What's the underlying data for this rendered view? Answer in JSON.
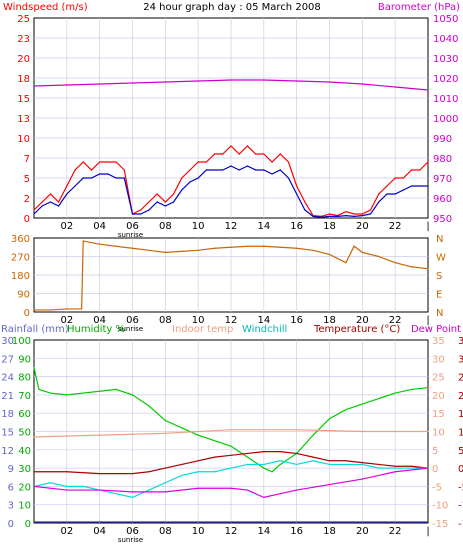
{
  "chart_data": [
    {
      "type": "line",
      "title": "24 hour graph day : 05 March 2008",
      "ylabel_left": "Windspeed (m/s)",
      "ylabel_right": "Barometer (hPa)",
      "x_ticks": [
        "02",
        "04",
        "06",
        "08",
        "10",
        "12",
        "14",
        "16",
        "18",
        "20",
        "22",
        "|"
      ],
      "annotation": "sunrise",
      "ylim_left": [
        0,
        25
      ],
      "y_ticks_left": [
        "0",
        "2",
        "5",
        "7",
        "10",
        "13",
        "15",
        "18",
        "20",
        "23",
        "25"
      ],
      "ylim_right": [
        950,
        1050
      ],
      "y_ticks_right": [
        "950",
        "960",
        "970",
        "980",
        "990",
        "1000",
        "1010",
        "1020",
        "1030",
        "1040",
        "1050"
      ],
      "grid": true,
      "series": [
        {
          "name": "Windspeed (m/s)",
          "color": "#ff0000",
          "x": [
            0.0,
            0.5,
            1.0,
            1.5,
            2.0,
            2.5,
            3.0,
            3.5,
            4.0,
            4.5,
            5.0,
            5.5,
            6.0,
            6.5,
            7.0,
            7.5,
            8.0,
            8.5,
            9.0,
            9.5,
            10.0,
            10.5,
            11.0,
            11.5,
            12.0,
            12.5,
            13.0,
            13.5,
            14.0,
            14.5,
            15.0,
            15.5,
            16.0,
            16.5,
            17.0,
            17.5,
            18.0,
            18.5,
            19.0,
            19.5,
            20.0,
            20.5,
            21.0,
            21.5,
            22.0,
            22.5,
            23.0,
            23.5,
            24.0
          ],
          "values": [
            1,
            2,
            3,
            2,
            4,
            6,
            7,
            6,
            7,
            7,
            7,
            6,
            0.5,
            1,
            2,
            3,
            2,
            3,
            5,
            6,
            7,
            7,
            8,
            8,
            9,
            8,
            9,
            8,
            8,
            7,
            8,
            7,
            4,
            2,
            0.3,
            0.2,
            0.5,
            0.3,
            0.8,
            0.5,
            0.5,
            1,
            3,
            4,
            5,
            5,
            6,
            6,
            7
          ]
        },
        {
          "name": "Windspeed avg",
          "color": "#0000cc",
          "x": [
            0.0,
            0.5,
            1.0,
            1.5,
            2.0,
            2.5,
            3.0,
            3.5,
            4.0,
            4.5,
            5.0,
            5.5,
            6.0,
            6.5,
            7.0,
            7.5,
            8.0,
            8.5,
            9.0,
            9.5,
            10.0,
            10.5,
            11.0,
            11.5,
            12.0,
            12.5,
            13.0,
            13.5,
            14.0,
            14.5,
            15.0,
            15.5,
            16.0,
            16.5,
            17.0,
            17.5,
            18.0,
            18.5,
            19.0,
            19.5,
            20.0,
            20.5,
            21.0,
            21.5,
            22.0,
            22.5,
            23.0,
            23.5,
            24.0
          ],
          "values": [
            0.5,
            1.5,
            2,
            1.5,
            3,
            4,
            5,
            5,
            5.5,
            5.5,
            5,
            5,
            0.5,
            0.5,
            1,
            2,
            1.5,
            2,
            3.5,
            4.5,
            5,
            6,
            6,
            6,
            6.5,
            6,
            6.5,
            6,
            6,
            5.5,
            6,
            5,
            3,
            1,
            0.2,
            0.1,
            0.2,
            0.2,
            0.3,
            0.2,
            0.3,
            0.5,
            2,
            3,
            3,
            3.5,
            4,
            4,
            4
          ]
        },
        {
          "name": "Barometer (hPa)",
          "color": "#cc00cc",
          "x": [
            0,
            2,
            4,
            6,
            8,
            10,
            12,
            14,
            16,
            18,
            20,
            22,
            24
          ],
          "values": [
            1016,
            1016.5,
            1017,
            1017.5,
            1018,
            1018.5,
            1019,
            1019,
            1018.5,
            1018,
            1017,
            1015.5,
            1014
          ]
        }
      ]
    },
    {
      "type": "line",
      "ylabel_right": "Wind direction",
      "x_ticks": [
        "02",
        "04",
        "06",
        "08",
        "10",
        "12",
        "14",
        "16",
        "18",
        "20",
        "22",
        "|"
      ],
      "annotation": "sunrise",
      "ylim": [
        0,
        360
      ],
      "y_ticks": [
        "0",
        "90",
        "180",
        "270",
        "360"
      ],
      "compass": [
        "N",
        "W",
        "S",
        "E",
        "N"
      ],
      "grid": true,
      "series": [
        {
          "name": "Wind direction",
          "color": "#cc6600",
          "x": [
            0,
            1,
            2,
            2.9,
            3,
            4,
            5,
            6,
            7,
            8,
            9,
            10,
            11,
            12,
            13,
            14,
            15,
            16,
            17,
            18,
            19,
            19.5,
            20,
            20.5,
            21,
            22,
            23,
            24
          ],
          "values": [
            10,
            10,
            15,
            15,
            345,
            330,
            320,
            310,
            300,
            290,
            295,
            300,
            310,
            315,
            320,
            320,
            315,
            310,
            300,
            280,
            240,
            320,
            290,
            280,
            270,
            240,
            220,
            210
          ]
        }
      ]
    },
    {
      "type": "line",
      "x_ticks": [
        "02",
        "04",
        "06",
        "08",
        "10",
        "12",
        "14",
        "16",
        "18",
        "20",
        "22",
        "|"
      ],
      "annotation": "sunrise",
      "legend": [
        "Rainfall (mm)",
        "Humidity %",
        "Indoor temp",
        "Windchill",
        "Temperature (°C)",
        "Dew Point"
      ],
      "y_ticks_rain": [
        "0",
        "3",
        "6",
        "9",
        "12",
        "15",
        "18",
        "21",
        "24",
        "27",
        "30"
      ],
      "y_ticks_humidity": [
        "0",
        "10",
        "20",
        "30",
        "40",
        "50",
        "60",
        "70",
        "80",
        "90",
        "100"
      ],
      "y_ticks_temp": [
        "-15",
        "-10",
        "-5",
        "0",
        "5",
        "10",
        "15",
        "20",
        "25",
        "30",
        "35"
      ],
      "ylim_temp": [
        -15,
        35
      ],
      "ylim_humidity": [
        0,
        100
      ],
      "grid": true,
      "series": [
        {
          "name": "Humidity %",
          "color": "#00cc00",
          "axis": "humidity",
          "x": [
            0,
            0.3,
            1,
            2,
            3,
            4,
            5,
            6,
            7,
            8,
            9,
            10,
            11,
            12,
            13,
            14,
            14.5,
            15,
            16,
            17,
            18,
            19,
            20,
            21,
            22,
            23,
            24
          ],
          "values": [
            85,
            73,
            71,
            70,
            71,
            72,
            73,
            70,
            64,
            56,
            52,
            48,
            45,
            42,
            36,
            30,
            28,
            32,
            38,
            48,
            57,
            62,
            65,
            68,
            71,
            73,
            74
          ]
        },
        {
          "name": "Indoor temp",
          "color": "#f0a080",
          "axis": "temp",
          "x": [
            0,
            4,
            8,
            12,
            16,
            20,
            24
          ],
          "values": [
            8.5,
            9,
            9.5,
            10.5,
            10.5,
            10,
            10
          ]
        },
        {
          "name": "Temperature (°C)",
          "color": "#aa0000",
          "axis": "temp",
          "x": [
            0,
            2,
            4,
            6,
            7,
            8,
            9,
            10,
            11,
            12,
            13,
            14,
            15,
            16,
            17,
            18,
            19,
            20,
            21,
            22,
            23,
            24
          ],
          "values": [
            -1,
            -1,
            -1.5,
            -1.5,
            -1,
            0,
            1,
            2,
            3,
            3.5,
            4,
            4.5,
            4.5,
            4,
            3,
            2,
            2,
            1.5,
            1,
            0.5,
            0.5,
            0
          ]
        },
        {
          "name": "Windchill",
          "color": "#00dddd",
          "axis": "temp",
          "x": [
            0,
            1,
            2,
            3,
            4,
            5,
            6,
            7,
            8,
            9,
            10,
            11,
            12,
            13,
            14,
            15,
            16,
            17,
            18,
            19,
            20,
            21,
            22,
            23,
            24
          ],
          "values": [
            -5,
            -4,
            -5,
            -5,
            -6,
            -7,
            -8,
            -6,
            -4,
            -2,
            -1,
            -1,
            0,
            1,
            1,
            2,
            1,
            2,
            1,
            1,
            1,
            0,
            0,
            0,
            0
          ]
        },
        {
          "name": "Dew Point",
          "color": "#dd00dd",
          "axis": "temp",
          "x": [
            0,
            2,
            4,
            6,
            8,
            10,
            12,
            13,
            14,
            15,
            16,
            18,
            20,
            22,
            24
          ],
          "values": [
            -5,
            -6,
            -6,
            -6.5,
            -6.5,
            -5.5,
            -5.5,
            -6,
            -8,
            -7,
            -6,
            -4.5,
            -3,
            -1,
            0
          ]
        }
      ]
    }
  ]
}
